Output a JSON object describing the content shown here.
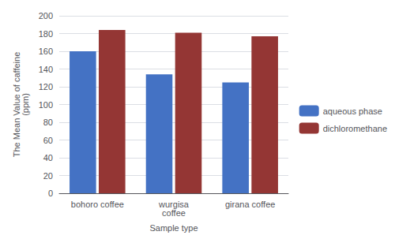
{
  "chart_data": {
    "type": "bar",
    "categories": [
      "bohoro coffee",
      "wurgisa\ncoffee",
      "girana coffee"
    ],
    "series": [
      {
        "name": "aqueous phase",
        "color": "#4472C4",
        "values": [
          160,
          134,
          125
        ]
      },
      {
        "name": "dichloromethane",
        "color": "#943634",
        "values": [
          184,
          181,
          177
        ]
      }
    ],
    "xlabel": "Sample type",
    "ylabel": "The Mean Value of caffeine\n(ppm)",
    "ylim": [
      0,
      200
    ],
    "yticks": [
      0,
      20,
      40,
      60,
      80,
      100,
      120,
      140,
      160,
      180,
      200
    ],
    "grid": true,
    "legend": "right"
  }
}
